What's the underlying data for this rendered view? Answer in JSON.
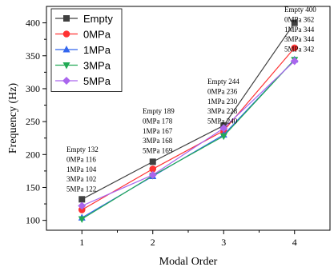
{
  "chart_data": {
    "type": "line",
    "title": "",
    "xlabel": "Modal Order",
    "ylabel": "Frequency (Hz)",
    "x": [
      1,
      2,
      3,
      4
    ],
    "xticks": [
      "1",
      "2",
      "3",
      "4"
    ],
    "xlim": [
      0.5,
      4.5
    ],
    "ylim": [
      85,
      425
    ],
    "yticks": [
      100,
      150,
      200,
      250,
      300,
      350,
      400
    ],
    "grid": false,
    "legend": "top-left",
    "series": [
      {
        "name": "Empty",
        "color": "#404040",
        "marker": "square",
        "values": [
          132,
          189,
          244,
          400
        ]
      },
      {
        "name": "0MPa",
        "color": "#ff3333",
        "marker": "circle",
        "values": [
          116,
          178,
          236,
          362
        ]
      },
      {
        "name": "1MPa",
        "color": "#3366ee",
        "marker": "triangle-up",
        "values": [
          104,
          167,
          230,
          344
        ]
      },
      {
        "name": "3MPa",
        "color": "#22aa55",
        "marker": "triangle-down",
        "values": [
          102,
          168,
          228,
          344
        ]
      },
      {
        "name": "5MPa",
        "color": "#aa66ee",
        "marker": "diamond",
        "values": [
          122,
          169,
          240,
          342
        ]
      }
    ],
    "annotations": [
      [
        "Empty 132",
        "0MPa 116",
        "1MPa 104",
        "3MPa 102",
        "5MPa 122"
      ],
      [
        "Empty 189",
        "0MPa 178",
        "1MPa 167",
        "3MPa 168",
        "5MPa 169"
      ],
      [
        "Empty 244",
        "0MPa 236",
        "1MPa 230",
        "3MPa 228",
        "5MPa 240"
      ],
      [
        "Empty 400",
        "0MPa 362",
        "1MPa 344",
        "3MPa 344",
        "5MPa 342"
      ]
    ]
  }
}
